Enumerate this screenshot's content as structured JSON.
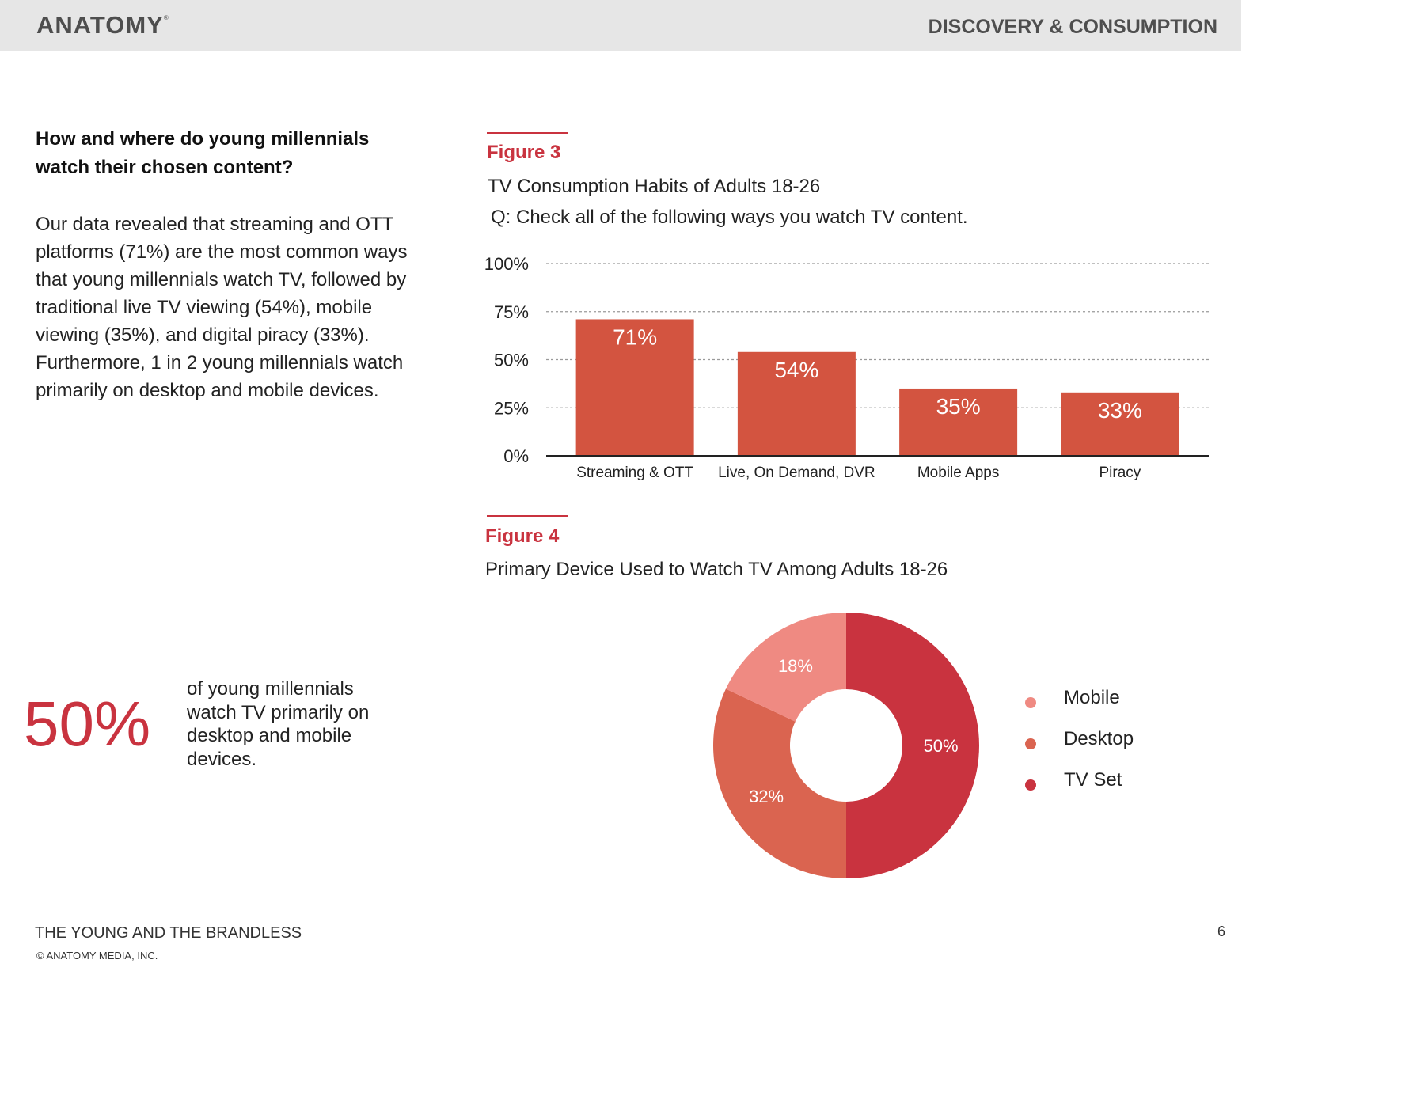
{
  "header": {
    "logo": "ANATOMY",
    "section": "DISCOVERY & CONSUMPTION"
  },
  "left": {
    "question": "How and where do young millennials watch their chosen content?",
    "body": "Our data revealed that streaming and OTT platforms (71%) are the most common ways that young millennials watch TV, followed by traditional live TV viewing (54%), mobile viewing (35%), and digital piracy (33%). Furthermore, 1 in 2 young millennials watch primarily on desktop and mobile devices.",
    "stat_value": "50%",
    "stat_caption": "of young millennials watch TV primarily on desktop and mobile devices."
  },
  "figure3": {
    "label": "Figure 3",
    "title": "TV Consumption Habits of Adults 18-26",
    "question": "Q: Check all of the following ways you watch TV content."
  },
  "figure4": {
    "label": "Figure 4",
    "title": "Primary Device Used to Watch TV Among Adults 18-26"
  },
  "chart_data": [
    {
      "type": "bar",
      "categories": [
        "Streaming & OTT",
        "Live, On Demand, DVR",
        "Mobile Apps",
        "Piracy"
      ],
      "values": [
        71,
        54,
        35,
        33
      ],
      "data_labels": [
        "71%",
        "54%",
        "35%",
        "33%"
      ],
      "yticks": [
        "0%",
        "25%",
        "50%",
        "75%",
        "100%"
      ],
      "ylim": [
        0,
        100
      ],
      "grid": true,
      "color": "#d35440"
    },
    {
      "type": "pie",
      "donut": true,
      "slices": [
        {
          "label": "TV Set",
          "value": 50,
          "text": "50%",
          "color": "#c9333f"
        },
        {
          "label": "Desktop",
          "value": 32,
          "text": "32%",
          "color": "#da6450"
        },
        {
          "label": "Mobile",
          "value": 18,
          "text": "18%",
          "color": "#ef8a82"
        }
      ],
      "legend": [
        "Mobile",
        "Desktop",
        "TV Set"
      ],
      "legend_colors": [
        "#ef8a82",
        "#da6450",
        "#c9333f"
      ],
      "legend_position": "right"
    }
  ],
  "footer": {
    "title": "THE YOUNG AND THE BRANDLESS",
    "copyright": "© ANATOMY MEDIA, INC.",
    "page": "6"
  }
}
